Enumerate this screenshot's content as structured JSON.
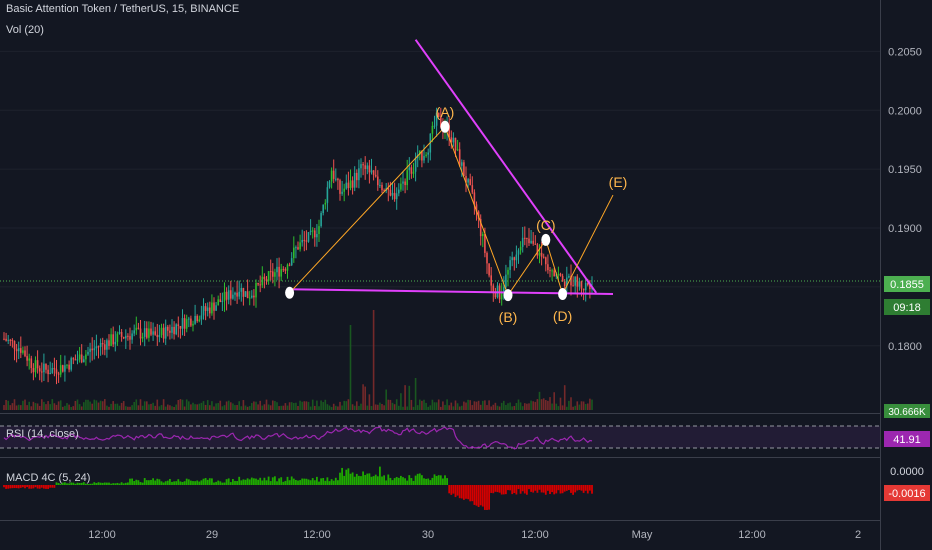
{
  "header": {
    "symbol_line": "Basic Attention Token / TetherUS, 15, BINANCE",
    "volume_indicator": "Vol (20)"
  },
  "indicators": {
    "rsi_label": "RSI (14, close)",
    "macd_label": "MACD 4C (5, 24)"
  },
  "colors": {
    "background": "#131722",
    "up": "#26a69a",
    "up_bright": "#2ebd2e",
    "down": "#ef5350",
    "pattern_line": "#e040fb",
    "wave_line": "#ffa726",
    "wave_label": "#ffb74d",
    "rsi_line": "#9c27b0",
    "last_price": "#4caf50"
  },
  "chart_data": {
    "type": "candlestick",
    "symbol": "Basic Attention Token / TetherUS",
    "interval": "15",
    "exchange": "BINANCE",
    "price_axis": {
      "ticks": [
        "0.2050",
        "0.2000",
        "0.1950",
        "0.1900",
        "0.1850",
        "0.1800"
      ],
      "range": [
        0.1765,
        0.2075
      ]
    },
    "time_axis": {
      "ticks": [
        "12:00",
        "29",
        "12:00",
        "30",
        "12:00",
        "May",
        "12:00",
        "2"
      ]
    },
    "last_price": "0.1855",
    "countdown": "09:18",
    "volume_value": "30.666K",
    "rsi_value": "41.91",
    "macd_value_zero": "0.0000",
    "macd_value": "-0.0016",
    "price_path": [
      [
        0,
        0.1806
      ],
      [
        8,
        0.1798
      ],
      [
        14,
        0.1783
      ],
      [
        20,
        0.1779
      ],
      [
        28,
        0.1782
      ],
      [
        36,
        0.179
      ],
      [
        44,
        0.1799
      ],
      [
        52,
        0.1805
      ],
      [
        58,
        0.1809
      ],
      [
        64,
        0.1811
      ],
      [
        72,
        0.1808
      ],
      [
        80,
        0.1815
      ],
      [
        88,
        0.1822
      ],
      [
        96,
        0.183
      ],
      [
        104,
        0.1839
      ],
      [
        112,
        0.1849
      ],
      [
        116,
        0.1843
      ],
      [
        120,
        0.1848
      ],
      [
        126,
        0.1858
      ],
      [
        134,
        0.1868
      ],
      [
        140,
        0.1885
      ],
      [
        146,
        0.1892
      ],
      [
        150,
        0.1902
      ],
      [
        156,
        0.195
      ],
      [
        160,
        0.193
      ],
      [
        166,
        0.194
      ],
      [
        172,
        0.1955
      ],
      [
        178,
        0.1935
      ],
      [
        184,
        0.1925
      ],
      [
        190,
        0.1938
      ],
      [
        196,
        0.1955
      ],
      [
        202,
        0.197
      ],
      [
        206,
        0.1992
      ],
      [
        212,
        0.1982
      ],
      [
        218,
        0.1952
      ],
      [
        224,
        0.192
      ],
      [
        228,
        0.189
      ],
      [
        232,
        0.185
      ],
      [
        236,
        0.1844
      ],
      [
        242,
        0.1872
      ],
      [
        246,
        0.189
      ],
      [
        252,
        0.1885
      ],
      [
        256,
        0.1875
      ],
      [
        262,
        0.1865
      ],
      [
        266,
        0.1854
      ],
      [
        270,
        0.1856
      ],
      [
        276,
        0.185
      ],
      [
        280,
        0.1855
      ]
    ],
    "wave_points": [
      {
        "label": "",
        "bar": 136,
        "price": 0.1845
      },
      {
        "label": "(A)",
        "bar": 210,
        "price": 0.1986
      },
      {
        "label": "(B)",
        "bar": 240,
        "price": 0.1843
      },
      {
        "label": "(C)",
        "bar": 258,
        "price": 0.189
      },
      {
        "label": "(D)",
        "bar": 266,
        "price": 0.1844
      }
    ],
    "projection_label": "(E)",
    "projection_point": {
      "bar": 290,
      "price": 0.1928
    },
    "upper_trendline": [
      {
        "bar": 196,
        "price": 0.206
      },
      {
        "bar": 282,
        "price": 0.1845
      }
    ],
    "lower_trendline": [
      {
        "bar": 136,
        "price": 0.1848
      },
      {
        "bar": 290,
        "price": 0.1844
      }
    ]
  }
}
